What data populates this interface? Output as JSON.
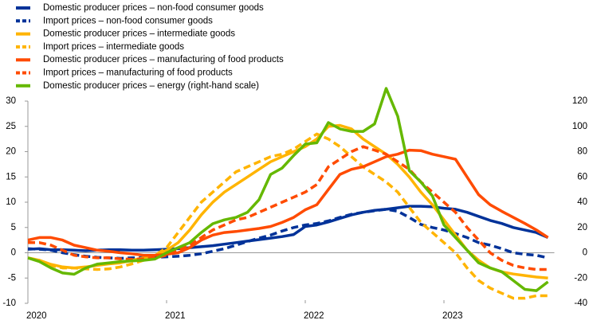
{
  "chart_data": {
    "type": "line",
    "categories": [
      "2020",
      null,
      null,
      null,
      null,
      null,
      null,
      null,
      null,
      null,
      null,
      null,
      "2021",
      null,
      null,
      null,
      null,
      null,
      null,
      null,
      null,
      null,
      null,
      null,
      "2022",
      null,
      null,
      null,
      null,
      null,
      null,
      null,
      null,
      null,
      null,
      null,
      "2023",
      null,
      null,
      null,
      null,
      null,
      null,
      null,
      null,
      null
    ],
    "ylim": [
      -10,
      30
    ],
    "yticks": [
      -10,
      -5,
      0,
      5,
      10,
      15,
      20,
      25,
      30
    ],
    "y2lim": [
      -40,
      120
    ],
    "y2ticks": [
      -40,
      -20,
      0,
      20,
      40,
      60,
      80,
      100,
      120
    ],
    "series": [
      {
        "name": "Domestic producer prices – non-food consumer goods",
        "color": "#003299",
        "dash": false,
        "values": [
          0.7,
          0.8,
          0.6,
          0.6,
          0.5,
          0.4,
          0.5,
          0.6,
          0.6,
          0.5,
          0.5,
          0.6,
          0.7,
          0.8,
          1.0,
          1.2,
          1.4,
          1.7,
          2.0,
          2.3,
          2.6,
          2.9,
          3.2,
          3.6,
          5.2,
          5.5,
          6.1,
          6.8,
          7.5,
          8.0,
          8.4,
          8.6,
          8.9,
          9.2,
          9.2,
          9.1,
          8.8,
          8.6,
          8.0,
          7.2,
          6.4,
          5.8,
          5.0,
          4.5,
          4.0,
          3.0
        ]
      },
      {
        "name": "Import prices – non-food consumer goods",
        "color": "#003299",
        "dash": true,
        "values": [
          0.8,
          0.7,
          0.5,
          0.0,
          -0.4,
          -0.7,
          -0.9,
          -1.0,
          -1.1,
          -1.0,
          -1.0,
          -0.9,
          -0.8,
          -0.7,
          -0.5,
          -0.2,
          0.3,
          0.8,
          1.5,
          2.2,
          2.9,
          3.5,
          4.3,
          5.0,
          5.5,
          5.8,
          6.3,
          7.0,
          7.6,
          8.0,
          8.3,
          8.6,
          8.2,
          7.0,
          5.6,
          5.0,
          4.5,
          3.8,
          3.0,
          2.0,
          1.5,
          0.8,
          0.0,
          -0.3,
          -0.5,
          -1.0
        ]
      },
      {
        "name": "Domestic producer prices – intermediate goods",
        "color": "#ffb400",
        "dash": false,
        "values": [
          -1,
          -1.5,
          -2.3,
          -2.8,
          -3.0,
          -2.8,
          -2.5,
          -2.2,
          -2.0,
          -1.5,
          -1.0,
          -0.5,
          0.5,
          2.0,
          4.5,
          7.5,
          10,
          12,
          13.5,
          15,
          16.5,
          18,
          19,
          20,
          21,
          22.5,
          25,
          25.2,
          24.5,
          22.5,
          21,
          19.5,
          17.5,
          15,
          12,
          9.5,
          6.5,
          3.5,
          0.5,
          -1.5,
          -3,
          -3.8,
          -4.2,
          -4.5,
          -4.8,
          -5
        ]
      },
      {
        "name": "Import prices – intermediate goods",
        "color": "#ffb400",
        "dash": true,
        "values": [
          -1,
          -1.5,
          -2.5,
          -3,
          -3,
          -3.2,
          -3.3,
          -3.2,
          -2.8,
          -2.2,
          -1.5,
          -0.5,
          1,
          4,
          7,
          10,
          12,
          14,
          16,
          17,
          18,
          19,
          19.5,
          20.5,
          22,
          23.5,
          22.5,
          21,
          19,
          17,
          15.5,
          14,
          12,
          9,
          6,
          4,
          2,
          0,
          -3,
          -5.5,
          -7,
          -8,
          -9,
          -9,
          -8.5,
          -8.5
        ]
      },
      {
        "name": "Domestic producer prices – manufacturing of food products",
        "color": "#ff4b00",
        "dash": false,
        "values": [
          2.5,
          3,
          3,
          2.5,
          1.5,
          1,
          0.5,
          0.3,
          0,
          -0.2,
          -0.5,
          -0.5,
          -0.3,
          0,
          1,
          2.5,
          3.5,
          4,
          4.2,
          4.5,
          4.8,
          5.2,
          6,
          7,
          8.5,
          9.5,
          12.5,
          15.5,
          16.5,
          17,
          18,
          19,
          19.5,
          20.3,
          20.2,
          19.5,
          19,
          18.5,
          15,
          11.5,
          9.5,
          8.2,
          7,
          5.8,
          4.5,
          3
        ]
      },
      {
        "name": "Import prices – manufacturing of food products",
        "color": "#ff4b00",
        "dash": true,
        "values": [
          2,
          2,
          1.5,
          0.5,
          -0.5,
          -0.8,
          -1,
          -1,
          -1.2,
          -1.3,
          -1.2,
          -1,
          -0.5,
          0.5,
          1.5,
          3,
          4.5,
          5.5,
          6.5,
          7,
          8,
          9,
          10,
          11,
          12,
          13.5,
          17,
          18.5,
          20,
          21,
          20.3,
          19.5,
          18,
          16.5,
          14,
          12,
          10,
          8,
          5,
          2.5,
          0,
          -1.5,
          -2.5,
          -3,
          -3.3,
          -3.3
        ]
      },
      {
        "name": "Domestic producer prices – energy (right-hand scale)",
        "color": "#65b800",
        "dash": false,
        "axis": "y2",
        "values": [
          -4,
          -7,
          -12,
          -16,
          -17,
          -12,
          -9,
          -8,
          -7,
          -6.5,
          -6,
          -5,
          0,
          4,
          8,
          16,
          23,
          26,
          28,
          32,
          42,
          62,
          67,
          77,
          86,
          87,
          103,
          98,
          96,
          96,
          102,
          130,
          108,
          65,
          56,
          45,
          22,
          12,
          2,
          -8,
          -12,
          -15,
          -22,
          -29,
          -30,
          -23
        ]
      }
    ]
  }
}
